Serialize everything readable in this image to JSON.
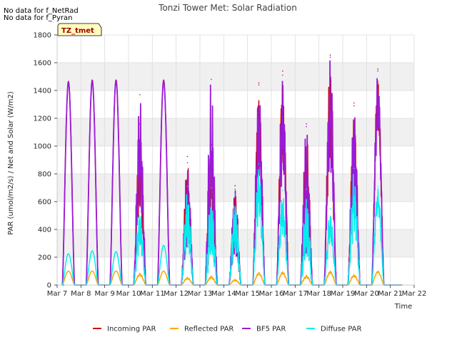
{
  "notes": [
    "No data for f_NetRad",
    "No data for f_Pyran"
  ],
  "site_tag": "TZ_tmet",
  "chart_data": {
    "type": "line",
    "title": "Tonzi Tower Met: Solar Radiation",
    "xlabel": "Time",
    "ylabel": "PAR (umol/m2/s) / Net and Solar (W/m2)",
    "xlim": [
      7,
      22
    ],
    "ylim": [
      0,
      1800
    ],
    "x_tick_labels": [
      "Mar 7",
      "Mar 8",
      "Mar 9",
      "Mar 10",
      "Mar 11",
      "Mar 12",
      "Mar 13",
      "Mar 14",
      "Mar 15",
      "Mar 16",
      "Mar 17",
      "Mar 18",
      "Mar 19",
      "Mar 20",
      "Mar 21",
      "Mar 22"
    ],
    "y_ticks": [
      0,
      200,
      400,
      600,
      800,
      1000,
      1200,
      1400,
      1600,
      1800
    ],
    "grid": true,
    "legend_position": "bottom",
    "days": [
      8,
      9,
      10,
      11,
      12,
      13,
      14,
      15,
      16,
      17,
      18,
      19,
      20,
      21
    ],
    "series": [
      {
        "name": "Incoming PAR",
        "color": "#cc0000",
        "values": [
          1465,
          1475,
          1475,
          1160,
          1475,
          925,
          1010,
          715,
          1455,
          1540,
          1160,
          1655,
          1310,
          1555
        ]
      },
      {
        "name": "Reflected PAR",
        "color": "#ffa500",
        "values": [
          100,
          100,
          100,
          85,
          100,
          55,
          65,
          40,
          90,
          95,
          70,
          100,
          75,
          100
        ]
      },
      {
        "name": "BF5 PAR",
        "color": "#9a1bd6",
        "values": [
          1460,
          1470,
          1470,
          1370,
          1470,
          880,
          1480,
          690,
          1440,
          1510,
          1140,
          1640,
          1290,
          1540
        ]
      },
      {
        "name": "Diffuse PAR",
        "color": "#00eeee",
        "values": [
          225,
          245,
          240,
          560,
          285,
          710,
          700,
          650,
          870,
          680,
          690,
          550,
          840,
          710
        ]
      }
    ]
  }
}
